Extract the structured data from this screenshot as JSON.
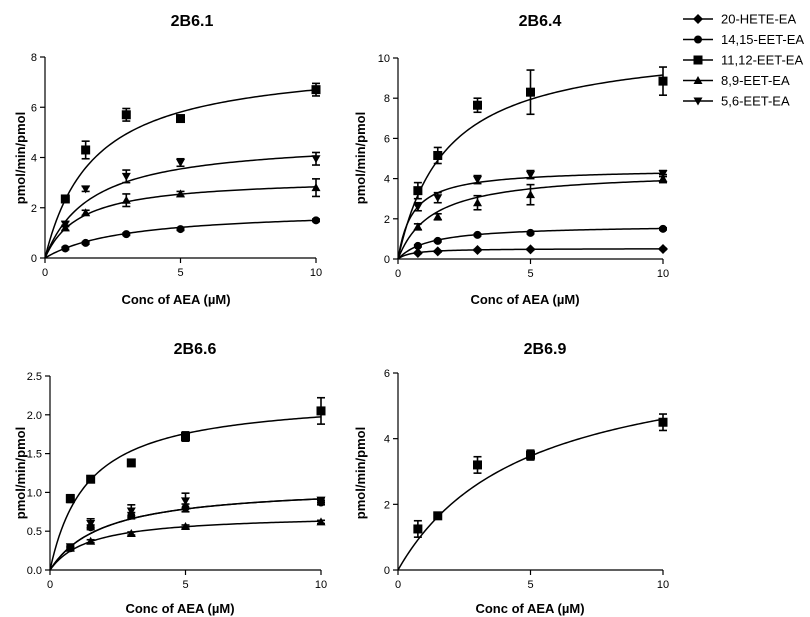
{
  "legend": [
    {
      "name": "20-HETE-EA",
      "marker": "diamond"
    },
    {
      "name": "14,15-EET-EA",
      "marker": "circle"
    },
    {
      "name": "11,12-EET-EA",
      "marker": "square"
    },
    {
      "name": "8,9-EET-EA",
      "marker": "triangle-up"
    },
    {
      "name": "5,6-EET-EA",
      "marker": "triangle-down"
    }
  ],
  "chart_data": [
    {
      "type": "scatter",
      "title": "2B6.1",
      "xlabel": "Conc of AEA (µM)",
      "ylabel": "pmol/min/pmol",
      "xlim": [
        0,
        10
      ],
      "ylim": [
        0,
        8
      ],
      "xticks": [
        "0",
        "5",
        "10"
      ],
      "yticks": [
        "0",
        "2",
        "4",
        "6",
        "8"
      ],
      "x": [
        0.75,
        1.5,
        3,
        5,
        10
      ],
      "series": [
        {
          "name": "14,15-EET-EA",
          "marker": "circle",
          "values": [
            0.38,
            0.6,
            0.95,
            1.15,
            1.5
          ],
          "err": [
            0.05,
            0.05,
            0.05,
            0.05,
            0.05
          ],
          "fit": {
            "vmax": 1.95,
            "km": 3.0
          }
        },
        {
          "name": "11,12-EET-EA",
          "marker": "square",
          "values": [
            2.35,
            4.3,
            5.7,
            5.55,
            6.7
          ],
          "err": [
            0.1,
            0.35,
            0.25,
            0.1,
            0.25
          ],
          "fit": {
            "vmax": 7.9,
            "km": 1.8
          }
        },
        {
          "name": "8,9-EET-EA",
          "marker": "triangle-up",
          "values": [
            1.2,
            1.8,
            2.3,
            2.55,
            2.8
          ],
          "err": [
            0.1,
            0.1,
            0.25,
            0.1,
            0.35
          ],
          "fit": {
            "vmax": 3.2,
            "km": 1.3
          }
        },
        {
          "name": "5,6-EET-EA",
          "marker": "triangle-down",
          "values": [
            1.35,
            2.75,
            3.25,
            3.8,
            3.95
          ],
          "err": [
            0.1,
            0.1,
            0.25,
            0.15,
            0.25
          ],
          "fit": {
            "vmax": 4.75,
            "km": 1.7
          }
        }
      ]
    },
    {
      "type": "scatter",
      "title": "2B6.4",
      "xlabel": "Conc of AEA (µM)",
      "ylabel": "pmol/min/pmol",
      "xlim": [
        0,
        10
      ],
      "ylim": [
        0,
        10
      ],
      "xticks": [
        "0",
        "5",
        "10"
      ],
      "yticks": [
        "0",
        "2",
        "4",
        "6",
        "8",
        "10"
      ],
      "x": [
        0.75,
        1.5,
        3,
        5,
        10
      ],
      "series": [
        {
          "name": "20-HETE-EA",
          "marker": "diamond",
          "values": [
            0.3,
            0.38,
            0.45,
            0.48,
            0.5
          ],
          "err": [
            0.03,
            0.03,
            0.03,
            0.03,
            0.03
          ],
          "fit": {
            "vmax": 0.53,
            "km": 0.5
          }
        },
        {
          "name": "14,15-EET-EA",
          "marker": "circle",
          "values": [
            0.65,
            0.9,
            1.2,
            1.3,
            1.5
          ],
          "err": [
            0.05,
            0.05,
            0.05,
            0.05,
            0.05
          ],
          "fit": {
            "vmax": 1.7,
            "km": 1.2
          }
        },
        {
          "name": "11,12-EET-EA",
          "marker": "square",
          "values": [
            3.4,
            5.15,
            7.65,
            8.3,
            8.85
          ],
          "err": [
            0.4,
            0.4,
            0.35,
            1.1,
            0.7
          ],
          "fit": {
            "vmax": 10.8,
            "km": 1.8
          }
        },
        {
          "name": "8,9-EET-EA",
          "marker": "triangle-up",
          "values": [
            1.6,
            2.1,
            2.8,
            3.2,
            4.0
          ],
          "err": [
            0.15,
            0.15,
            0.35,
            0.5,
            0.2
          ],
          "fit": {
            "vmax": 4.4,
            "km": 1.3
          }
        },
        {
          "name": "5,6-EET-EA",
          "marker": "triangle-down",
          "values": [
            2.6,
            3.05,
            3.95,
            4.2,
            4.25
          ],
          "err": [
            0.2,
            0.25,
            0.2,
            0.2,
            0.15
          ],
          "fit": {
            "vmax": 4.5,
            "km": 0.55
          }
        }
      ]
    },
    {
      "type": "scatter",
      "title": "2B6.6",
      "xlabel": "Conc of AEA (µM)",
      "ylabel": "pmol/min/pmol",
      "xlim": [
        0,
        10
      ],
      "ylim": [
        0,
        2.5
      ],
      "xticks": [
        "0",
        "5",
        "10"
      ],
      "yticks": [
        "0.0",
        "0.5",
        "1.0",
        "1.5",
        "2.0",
        "2.5"
      ],
      "x": [
        0.75,
        1.5,
        3,
        5,
        10
      ],
      "series": [
        {
          "name": "14,15-EET-EA",
          "marker": "circle",
          "values": [
            0.28,
            0.55,
            0.7,
            0.8,
            0.87
          ],
          "err": [
            0.02,
            0.03,
            0.04,
            0.05,
            0.03
          ],
          "fit": {
            "vmax": 1.1,
            "km": 2.0
          }
        },
        {
          "name": "11,12-EET-EA",
          "marker": "square",
          "values": [
            0.92,
            1.17,
            1.38,
            1.72,
            2.05
          ],
          "err": [
            0.05,
            0.03,
            0.03,
            0.06,
            0.17
          ],
          "fit": {
            "vmax": 2.25,
            "km": 1.4
          }
        },
        {
          "name": "8,9-EET-EA",
          "marker": "triangle-up",
          "values": [
            0.28,
            0.37,
            0.47,
            0.56,
            0.62
          ],
          "err": [
            0.02,
            0.02,
            0.02,
            0.02,
            0.02
          ],
          "fit": {
            "vmax": 0.72,
            "km": 1.45
          }
        },
        {
          "name": "5,6-EET-EA",
          "marker": "triangle-down",
          "values": [
            0.3,
            0.6,
            0.76,
            0.89,
            0.9
          ],
          "err": [
            0.02,
            0.06,
            0.08,
            0.1,
            0.03
          ],
          "fit": {
            "vmax": 1.1,
            "km": 2.0
          }
        }
      ]
    },
    {
      "type": "scatter",
      "title": "2B6.9",
      "xlabel": "Conc of AEA (µM)",
      "ylabel": "pmol/min/pmol",
      "xlim": [
        0,
        10
      ],
      "ylim": [
        0,
        6
      ],
      "xticks": [
        "0",
        "5",
        "10"
      ],
      "yticks": [
        "0",
        "2",
        "4",
        "6"
      ],
      "x": [
        0.75,
        1.5,
        3,
        5,
        10
      ],
      "series": [
        {
          "name": "11,12-EET-EA",
          "marker": "square",
          "values": [
            1.25,
            1.65,
            3.2,
            3.5,
            4.5
          ],
          "err": [
            0.25,
            0.05,
            0.25,
            0.15,
            0.25
          ],
          "fit": {
            "vmax": 6.8,
            "km": 4.8
          }
        }
      ]
    }
  ]
}
